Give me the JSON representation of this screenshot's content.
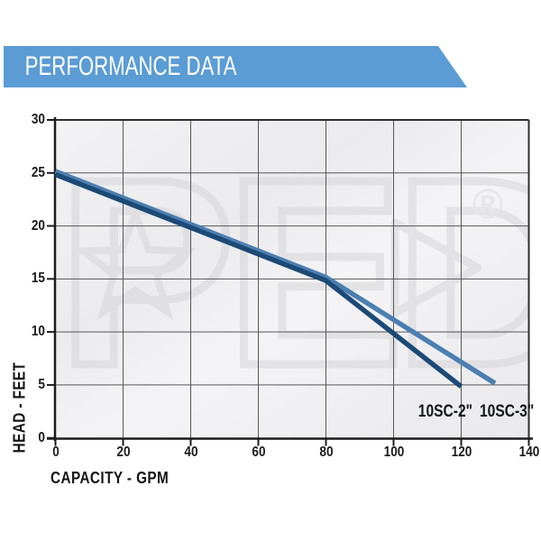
{
  "header": {
    "title": "PERFORMANCE DATA",
    "banner_color": "#5b9cd5"
  },
  "chart_data": {
    "type": "line",
    "title": "",
    "xlabel": "CAPACITY - GPM",
    "ylabel": "HEAD - FEET",
    "xlim": [
      0,
      140
    ],
    "ylim": [
      0,
      30
    ],
    "x_ticks": [
      "0",
      "20",
      "40",
      "60",
      "80",
      "100",
      "120",
      "140"
    ],
    "y_ticks": [
      "30",
      "25",
      "20",
      "15",
      "10",
      "5",
      "0"
    ],
    "grid": true,
    "legend_position": "inline-end-labels",
    "series": [
      {
        "name": "10SC-3\"",
        "color": "#4c7fb1",
        "points": [
          [
            0,
            25
          ],
          [
            80,
            15
          ],
          [
            130,
            5
          ]
        ]
      },
      {
        "name": "10SC-2\"",
        "color": "#1c4a77",
        "points": [
          [
            0,
            25
          ],
          [
            80,
            15
          ],
          [
            120,
            5
          ]
        ]
      }
    ],
    "watermark": {
      "text": "PED",
      "registered": "®"
    }
  }
}
